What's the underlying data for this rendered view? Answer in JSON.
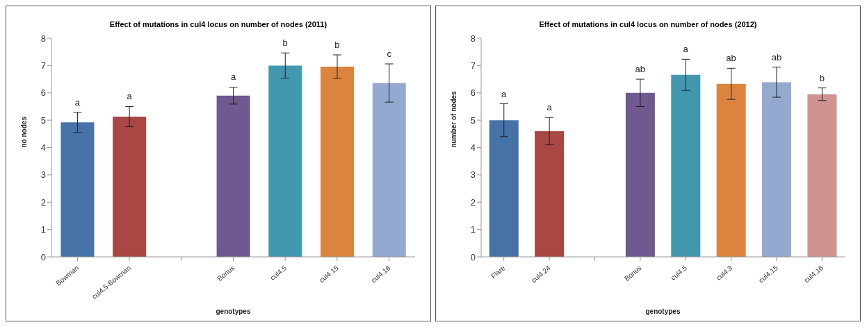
{
  "chart_data": [
    {
      "type": "bar",
      "title": "Effect of mutations in cul4 locus on number of nodes (2011)",
      "xlabel": "genotypes",
      "ylabel": "no nodes",
      "categories": [
        "Bowman",
        "cul4.5-Bowman",
        null,
        "Bonus",
        "cul4.5",
        "cul4.15",
        "cul4.16"
      ],
      "values": [
        4.92,
        5.13,
        null,
        5.9,
        7.0,
        6.96,
        6.36
      ],
      "errors": [
        0.37,
        0.37,
        null,
        0.31,
        0.46,
        0.43,
        0.7
      ],
      "colors": [
        "#4572a7",
        "#aa4643",
        "#ffffff",
        "#71588f",
        "#4198af",
        "#db843d",
        "#93a9cf"
      ],
      "ylim": [
        0,
        8
      ],
      "yticks": [
        0,
        1,
        2,
        3,
        4,
        5,
        6,
        7,
        8
      ],
      "grid": false,
      "legend": false,
      "annotations": [
        "a",
        "a",
        "a",
        "b",
        "b",
        "c"
      ]
    },
    {
      "type": "bar",
      "title": "Effect of mutations in cul4 locus on number of nodes (2012)",
      "xlabel": "genotypes",
      "ylabel": "number of nodes",
      "categories": [
        "Flare",
        "cul4.24",
        null,
        "Bonus",
        "cul4.5",
        "cul4.3",
        "cul4.15",
        "cul4.16"
      ],
      "values": [
        5.0,
        4.6,
        null,
        6.0,
        6.66,
        6.33,
        6.39,
        5.95
      ],
      "errors": [
        0.6,
        0.5,
        null,
        0.5,
        0.57,
        0.57,
        0.55,
        0.23
      ],
      "colors": [
        "#4572a7",
        "#aa4643",
        "#ffffff",
        "#71588f",
        "#4198af",
        "#db843d",
        "#93a9cf",
        "#d09392"
      ],
      "ylim": [
        0,
        8
      ],
      "yticks": [
        0,
        1,
        2,
        3,
        4,
        5,
        6,
        7,
        8
      ],
      "grid": false,
      "legend": false,
      "annotations": [
        "a",
        "a",
        "ab",
        "a",
        "ab",
        "ab",
        "b"
      ]
    }
  ]
}
